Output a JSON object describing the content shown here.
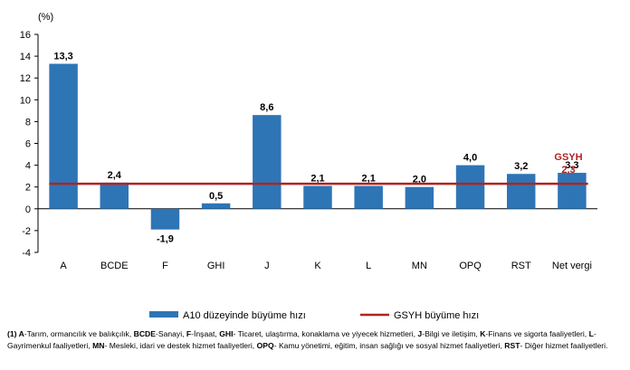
{
  "chart_data": {
    "type": "bar",
    "unit": "(%)",
    "categories": [
      "A",
      "BCDE",
      "F",
      "GHI",
      "J",
      "K",
      "L",
      "MN",
      "OPQ",
      "RST",
      "Net vergi"
    ],
    "series": [
      {
        "name": "A10 düzeyinde büyüme hızı",
        "values": [
          13.3,
          2.4,
          -1.9,
          0.5,
          8.6,
          2.1,
          2.1,
          2.0,
          4.0,
          3.2,
          3.3
        ],
        "labels": [
          "13,3",
          "2,4",
          "-1,9",
          "0,5",
          "8,6",
          "2,1",
          "2,1",
          "2,0",
          "4,0",
          "3,2",
          "3,3"
        ],
        "color": "#2e75b6"
      },
      {
        "name": "GSYH büyüme hızı",
        "type": "line",
        "value": 2.3,
        "annotation": [
          "GSYH",
          "2,3"
        ],
        "color": "#b22222"
      }
    ],
    "ylim": [
      -4,
      16
    ],
    "yticks": [
      -4,
      -2,
      0,
      2,
      4,
      6,
      8,
      10,
      12,
      14,
      16
    ],
    "grid": false,
    "legend": "bottom"
  },
  "footnote": [
    {
      "b": "(1) A",
      "t": "-Tarım, ormancılık ve balıkçılık, "
    },
    {
      "b": "BCDE",
      "t": "-Sanayi, "
    },
    {
      "b": "F",
      "t": "-İnşaat, "
    },
    {
      "b": "GHI",
      "t": "- Ticaret, ulaştırma, konaklama ve yiyecek hizmetleri, "
    },
    {
      "b": "J",
      "t": "-Bilgi ve iletişim, "
    },
    {
      "b": "K",
      "t": "-Finans ve sigorta faaliyetleri, "
    },
    {
      "b": "L",
      "t": "-Gayrimenkul faaliyetleri, "
    },
    {
      "b": "MN",
      "t": "- Mesleki, idari ve destek hizmet faaliyetleri, "
    },
    {
      "b": "OPQ",
      "t": "- Kamu yönetimi, eğitim, insan sağlığı ve sosyal hizmet faaliyetleri, "
    },
    {
      "b": "RST",
      "t": "- Diğer hizmet faaliyetleri."
    }
  ]
}
